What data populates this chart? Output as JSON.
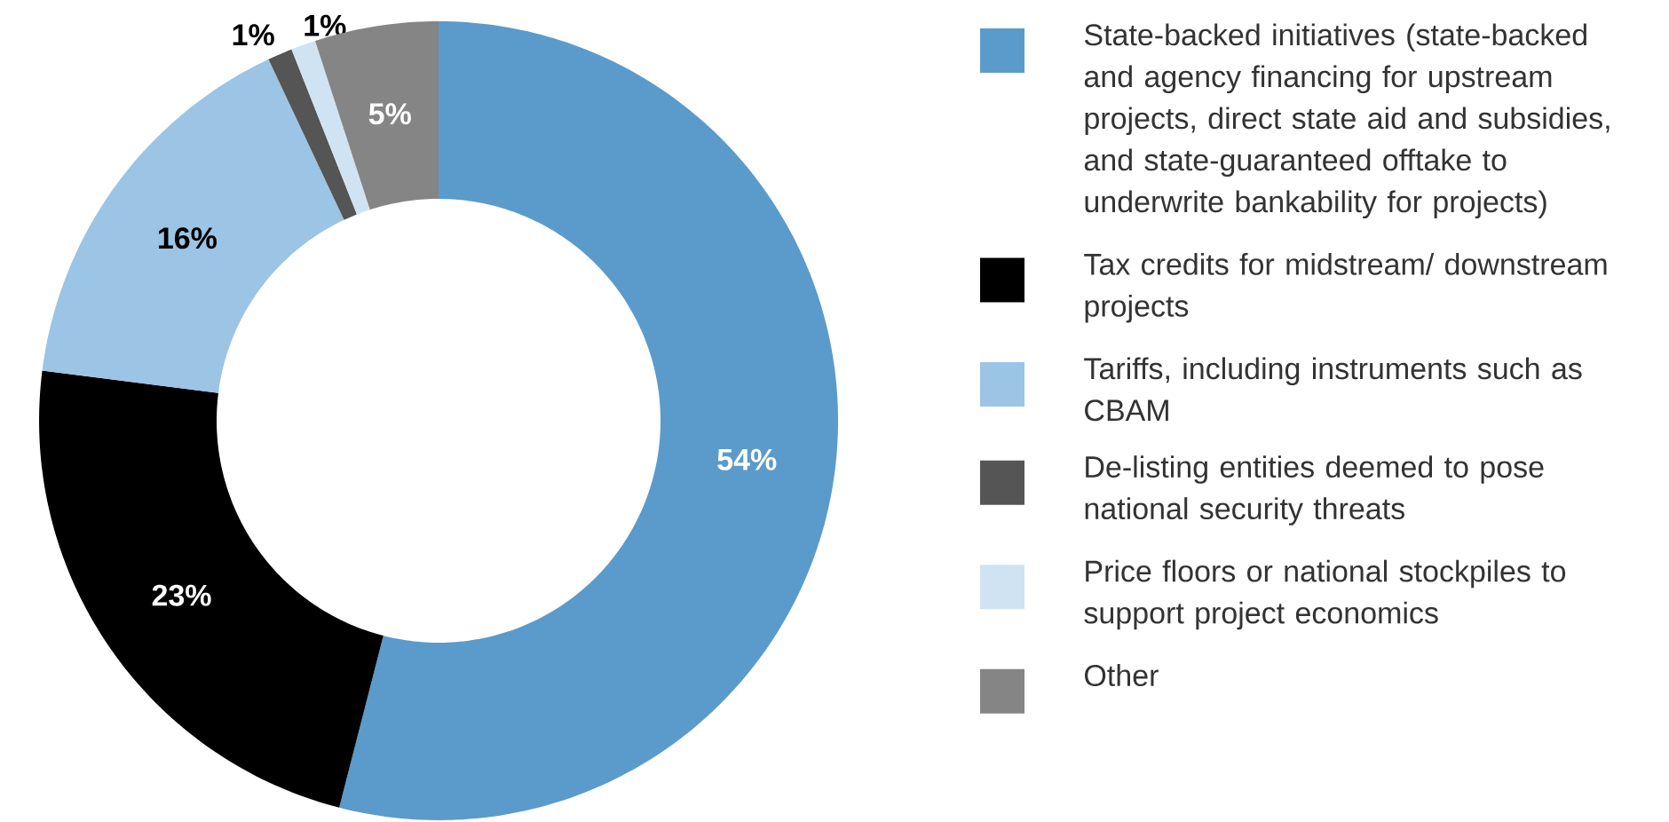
{
  "chart_data": {
    "type": "donut",
    "categories": [
      "State-backed initiatives (state-backed and agency financing for upstream projects, direct state aid and subsidies, and state-guaranteed offtake to underwrite bankability for projects)",
      "Tax credits for midstream/ downstream projects",
      "Tariffs, including instruments such as CBAM",
      "De-listing entities deemed to pose national security threats",
      "Price floors or national stockpiles to support project economics",
      "Other"
    ],
    "values": [
      54,
      23,
      16,
      1,
      1,
      5
    ],
    "value_labels": [
      "54%",
      "23%",
      "16%",
      "1%",
      "1%",
      "5%"
    ],
    "colors": [
      "#5b9bcb",
      "#000000",
      "#9cc4e4",
      "#555555",
      "#d0e3f3",
      "#858585"
    ],
    "legend": "right"
  }
}
